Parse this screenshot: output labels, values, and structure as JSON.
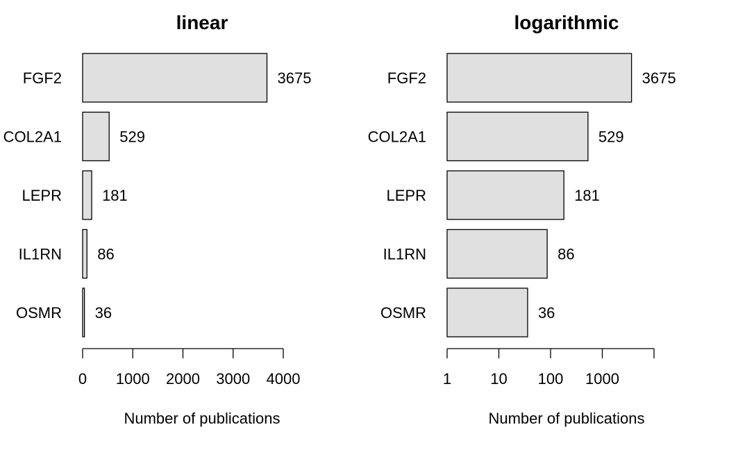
{
  "chart_data": [
    {
      "type": "bar",
      "orientation": "horizontal",
      "title": "linear",
      "scale": "linear",
      "categories": [
        "FGF2",
        "COL2A1",
        "LEPR",
        "IL1RN",
        "OSMR"
      ],
      "values": [
        3675,
        529,
        181,
        86,
        36
      ],
      "xlabel": "Number of publications",
      "xlim": [
        0,
        4000
      ],
      "xticks": [
        0,
        1000,
        2000,
        3000,
        4000
      ],
      "xtick_labels": [
        "0",
        "1000",
        "2000",
        "3000",
        "4000"
      ],
      "value_labels": [
        "3675",
        "529",
        "181",
        "86",
        "36"
      ],
      "bar_color": "#e0e0e0",
      "grid": false
    },
    {
      "type": "bar",
      "orientation": "horizontal",
      "title": "logarithmic",
      "scale": "log",
      "categories": [
        "FGF2",
        "COL2A1",
        "LEPR",
        "IL1RN",
        "OSMR"
      ],
      "values": [
        3675,
        529,
        181,
        86,
        36
      ],
      "xlabel": "Number of publications",
      "xlim": [
        1,
        10000
      ],
      "xticks": [
        1,
        10,
        100,
        1000,
        10000
      ],
      "xtick_labels": [
        "1",
        "10",
        "100",
        "1000",
        ""
      ],
      "value_labels": [
        "3675",
        "529",
        "181",
        "86",
        "36"
      ],
      "bar_color": "#e0e0e0",
      "grid": false
    }
  ]
}
